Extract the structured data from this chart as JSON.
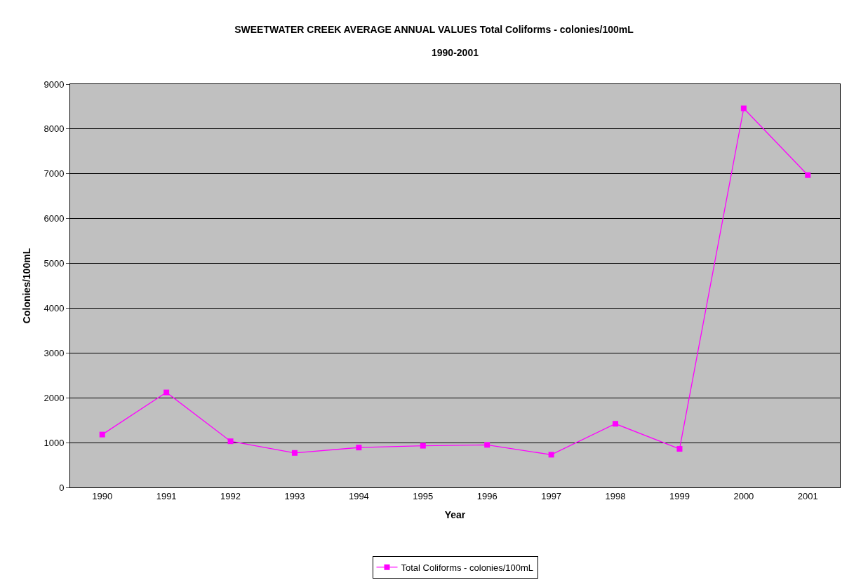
{
  "chart_data": {
    "type": "line",
    "title": "SWEETWATER CREEK AVERAGE ANNUAL VALUES Total Coliforms - colonies/100mL",
    "subtitle": "1990-2001",
    "xlabel": "Year",
    "ylabel": "Colonies/100mL",
    "categories": [
      "1990",
      "1991",
      "1992",
      "1993",
      "1994",
      "1995",
      "1996",
      "1997",
      "1998",
      "1999",
      "2000",
      "2001"
    ],
    "series": [
      {
        "name": "Total Coliforms - colonies/100mL",
        "color": "#ff00ff",
        "values": [
          1180,
          2120,
          1030,
          770,
          890,
          930,
          950,
          730,
          1420,
          860,
          8460,
          6970
        ]
      }
    ],
    "ylim": [
      0,
      9000
    ],
    "yticks": [
      0,
      1000,
      2000,
      3000,
      4000,
      5000,
      6000,
      7000,
      8000,
      9000
    ],
    "grid": "y",
    "legend": "bottom",
    "marker": "square",
    "line_style": "solid"
  }
}
